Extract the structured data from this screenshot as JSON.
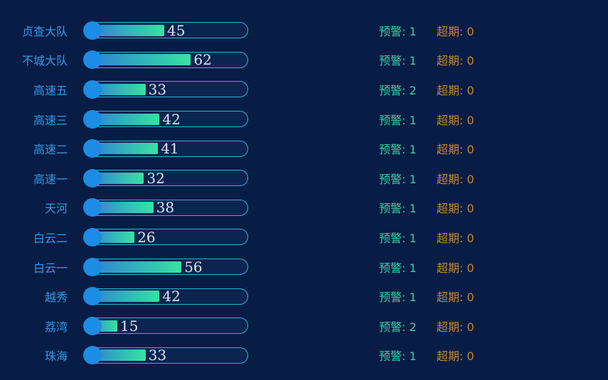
{
  "labels": {
    "warning": "预警",
    "overdue": "超期"
  },
  "colors": {
    "bg": "#081d45",
    "label_blue": "#2f9be8",
    "track_border": "#2eb4d8",
    "track_inner": "#0b2550",
    "dot_blue": "#1d8ce4",
    "fill_start": "#2f7cd8",
    "fill_end": "#36e3a1",
    "value_text": "#dde3f3",
    "warning_green": "#36cfa2",
    "overdue_orange": "#c8862c"
  },
  "chart_data": {
    "type": "bar",
    "orientation": "horizontal",
    "title": "",
    "xlabel": "",
    "ylabel": "",
    "xlim": [
      0,
      100
    ],
    "grid": false,
    "legend": false,
    "categories": [
      "贞查大队",
      "不城大队",
      "高速五",
      "高速三",
      "高速二",
      "高速一",
      "天河",
      "白云二",
      "白云一",
      "越秀",
      "荔湾",
      "珠海"
    ],
    "values": [
      45,
      62,
      33,
      42,
      41,
      32,
      38,
      26,
      56,
      42,
      15,
      33
    ],
    "warnings": [
      1,
      1,
      2,
      1,
      1,
      1,
      1,
      1,
      1,
      1,
      2,
      1
    ],
    "overdue": [
      0,
      0,
      0,
      0,
      0,
      0,
      0,
      0,
      0,
      0,
      0,
      0
    ]
  }
}
